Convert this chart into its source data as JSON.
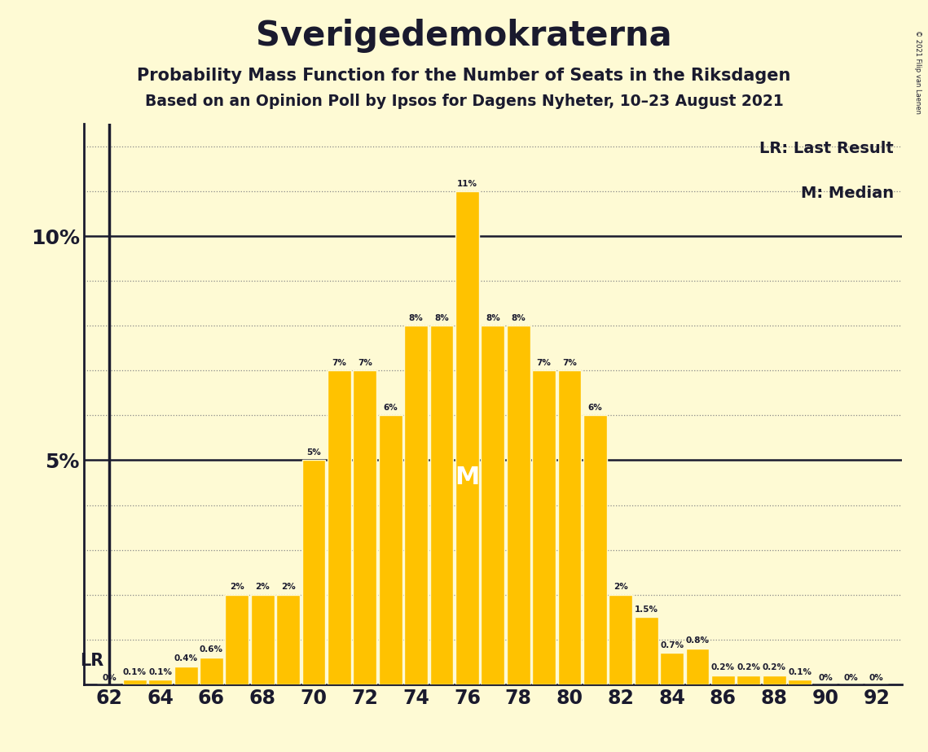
{
  "title": "Sverigedemokraterna",
  "subtitle1": "Probability Mass Function for the Number of Seats in the Riksdagen",
  "subtitle2": "Based on an Opinion Poll by Ipsos for Dagens Nyheter, 10–23 August 2021",
  "copyright": "© 2021 Filip van Laenen",
  "seats": [
    62,
    63,
    64,
    65,
    66,
    67,
    68,
    69,
    70,
    71,
    72,
    73,
    74,
    75,
    76,
    77,
    78,
    79,
    80,
    81,
    82,
    83,
    84,
    85,
    86,
    87,
    88,
    89,
    90,
    91,
    92
  ],
  "probabilities": [
    0.0,
    0.1,
    0.1,
    0.4,
    0.6,
    2.0,
    2.0,
    2.0,
    5.0,
    7.0,
    7.0,
    6.0,
    8.0,
    8.0,
    11.0,
    8.0,
    8.0,
    7.0,
    7.0,
    6.0,
    2.0,
    1.5,
    0.7,
    0.8,
    0.2,
    0.2,
    0.2,
    0.1,
    0.0,
    0.0,
    0.0
  ],
  "background_color": "#FEFAD4",
  "bar_color": "#FFC200",
  "bar_edge_color": "#FEFAD4",
  "text_color": "#1A1A2E",
  "lr_seat": 62,
  "median_seat": 76,
  "lr_label": "LR",
  "median_label": "M",
  "legend_lr": "LR: Last Result",
  "legend_m": "M: Median",
  "ylim": [
    0,
    12.5
  ],
  "dotted_percentages": [
    1.0,
    2.0,
    3.0,
    4.0,
    6.0,
    7.0,
    8.0,
    9.0,
    11.0,
    12.0
  ],
  "solid_percentages": [
    5.0,
    10.0
  ],
  "dotted_line_color": "#888888"
}
